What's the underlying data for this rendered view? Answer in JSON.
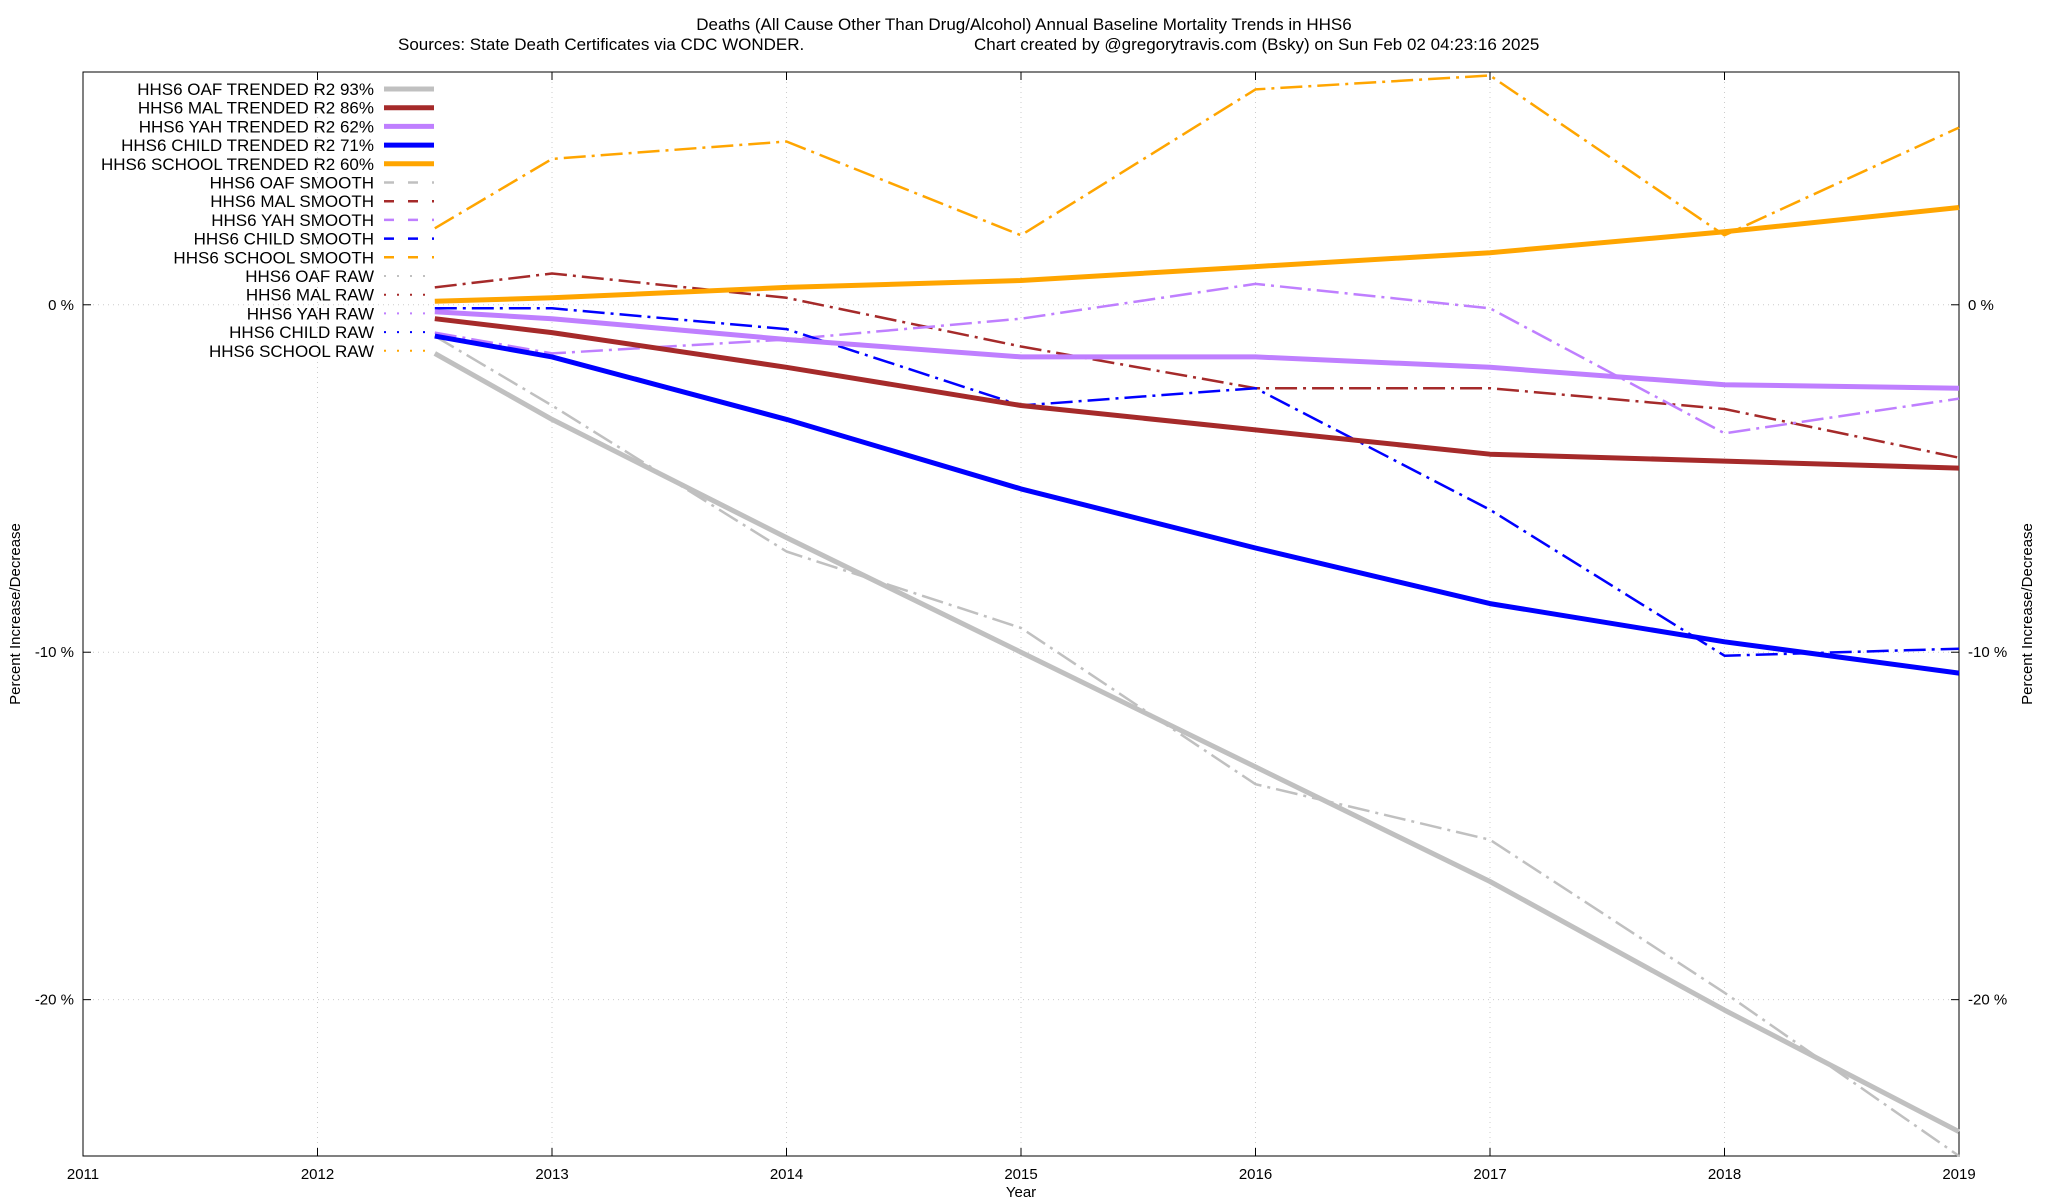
{
  "chart_data": {
    "type": "line",
    "title_line1": "Deaths (All Cause Other Than Drug/Alcohol)  Annual Baseline Mortality Trends in HHS6",
    "title_line2_left": "Sources: State Death Certificates via CDC WONDER.",
    "title_line2_right": "Chart created by @gregorytravis.com (Bsky) on Sun Feb 02 04:23:16 2025",
    "xlabel": "Year",
    "ylabel_left": "Percent Increase/Decrease",
    "ylabel_right": "Percent Increase/Decrease",
    "xlim": [
      2011,
      2019
    ],
    "ylim": [
      -24.5,
      6.7
    ],
    "x_ticks": [
      {
        "value": 2011,
        "label": "2011"
      },
      {
        "value": 2012,
        "label": "2012"
      },
      {
        "value": 2013,
        "label": "2013"
      },
      {
        "value": 2014,
        "label": "2014"
      },
      {
        "value": 2015,
        "label": "2015"
      },
      {
        "value": 2016,
        "label": "2016"
      },
      {
        "value": 2017,
        "label": "2017"
      },
      {
        "value": 2018,
        "label": "2018"
      },
      {
        "value": 2019,
        "label": "2019"
      }
    ],
    "y_ticks": [
      {
        "value": 0,
        "label": "0 %"
      },
      {
        "value": -10,
        "label": "-10 %"
      },
      {
        "value": -20,
        "label": "-20 %"
      }
    ],
    "grid": true,
    "legend_position": "top-left",
    "series": [
      {
        "name": "HHS6 OAF TRENDED R2  93%",
        "style": "trended",
        "color": "#c0c0c0",
        "x": [
          2012.5,
          2013,
          2014,
          2015,
          2016,
          2017,
          2018,
          2019
        ],
        "y": [
          -1.4,
          -3.3,
          -6.7,
          -10.0,
          -13.3,
          -16.6,
          -20.3,
          -23.8
        ]
      },
      {
        "name": "HHS6 MAL TRENDED R2  86%",
        "style": "trended",
        "color": "#a52a2a",
        "x": [
          2012.5,
          2013,
          2014,
          2015,
          2016,
          2017,
          2018,
          2019
        ],
        "y": [
          -0.4,
          -0.8,
          -1.8,
          -2.9,
          -3.6,
          -4.3,
          -4.5,
          -4.7
        ]
      },
      {
        "name": "HHS6 YAH TRENDED R2  62%",
        "style": "trended",
        "color": "#bf7fff",
        "x": [
          2012.5,
          2013,
          2014,
          2015,
          2016,
          2017,
          2018,
          2019
        ],
        "y": [
          -0.2,
          -0.4,
          -1.0,
          -1.5,
          -1.5,
          -1.8,
          -2.3,
          -2.4
        ]
      },
      {
        "name": "HHS6 CHILD TRENDED R2  71%",
        "style": "trended",
        "color": "#0000ff",
        "x": [
          2012.5,
          2013,
          2014,
          2015,
          2016,
          2017,
          2018,
          2019
        ],
        "y": [
          -0.9,
          -1.5,
          -3.3,
          -5.3,
          -7.0,
          -8.6,
          -9.7,
          -10.6
        ]
      },
      {
        "name": "HHS6 SCHOOL TRENDED R2  60%",
        "style": "trended",
        "color": "#ffa500",
        "x": [
          2012.5,
          2013,
          2014,
          2015,
          2016,
          2017,
          2018,
          2019
        ],
        "y": [
          0.1,
          0.2,
          0.5,
          0.7,
          1.1,
          1.5,
          2.1,
          2.8
        ]
      },
      {
        "name": "HHS6 OAF SMOOTH",
        "style": "smooth",
        "color": "#c0c0c0",
        "x": [
          2012.5,
          2013,
          2014,
          2015,
          2016,
          2017,
          2018,
          2019
        ],
        "y": [
          -0.9,
          -2.9,
          -7.1,
          -9.3,
          -13.8,
          -15.4,
          -19.8,
          -24.5
        ]
      },
      {
        "name": "HHS6 MAL SMOOTH",
        "style": "smooth",
        "color": "#a52a2a",
        "x": [
          2012.5,
          2013,
          2014,
          2015,
          2016,
          2017,
          2018,
          2019
        ],
        "y": [
          0.5,
          0.9,
          0.2,
          -1.2,
          -2.4,
          -2.4,
          -3.0,
          -4.4
        ]
      },
      {
        "name": "HHS6 YAH SMOOTH",
        "style": "smooth",
        "color": "#bf7fff",
        "x": [
          2012.5,
          2013,
          2014,
          2015,
          2016,
          2017,
          2018,
          2019
        ],
        "y": [
          -0.8,
          -1.4,
          -1.0,
          -0.4,
          0.6,
          -0.1,
          -3.7,
          -2.7
        ]
      },
      {
        "name": "HHS6 CHILD SMOOTH",
        "style": "smooth",
        "color": "#0000ff",
        "x": [
          2012.5,
          2013,
          2014,
          2015,
          2016,
          2017,
          2018,
          2019
        ],
        "y": [
          -0.1,
          -0.1,
          -0.7,
          -2.9,
          -2.4,
          -5.9,
          -10.1,
          -9.9
        ]
      },
      {
        "name": "HHS6 SCHOOL SMOOTH",
        "style": "smooth",
        "color": "#ffa500",
        "x": [
          2012.5,
          2013,
          2014,
          2015,
          2016,
          2017,
          2018,
          2019
        ],
        "y": [
          2.2,
          4.2,
          4.7,
          2.0,
          6.2,
          6.6,
          2.0,
          5.1
        ]
      },
      {
        "name": "HHS6 OAF RAW",
        "style": "raw",
        "color": "#c0c0c0",
        "x": [],
        "y": []
      },
      {
        "name": "HHS6 MAL RAW",
        "style": "raw",
        "color": "#a52a2a",
        "x": [],
        "y": []
      },
      {
        "name": "HHS6 YAH RAW",
        "style": "raw",
        "color": "#bf7fff",
        "x": [],
        "y": []
      },
      {
        "name": "HHS6 CHILD RAW",
        "style": "raw",
        "color": "#0000ff",
        "x": [],
        "y": []
      },
      {
        "name": "HHS6 SCHOOL RAW",
        "style": "raw",
        "color": "#ffa500",
        "x": [],
        "y": []
      }
    ]
  }
}
